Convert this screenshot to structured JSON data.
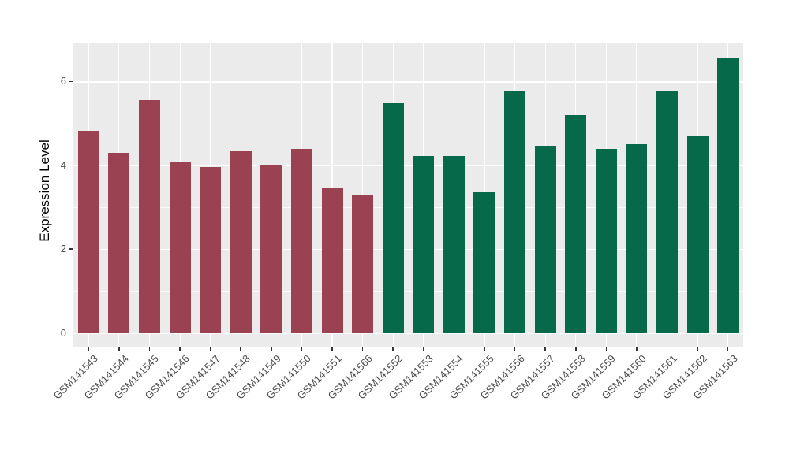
{
  "figure": {
    "background_color": "#FFFFFF",
    "panel_background_color": "#EBEBEB",
    "gridline_color": "#FFFFFF",
    "tick_color": "#333333",
    "axis_text_color": "#4D4D4D",
    "axis_title_color": "#000000"
  },
  "chart_data": {
    "type": "bar",
    "title": "",
    "xlabel": "",
    "ylabel": "Expression Level",
    "categories": [
      "GSM141543",
      "GSM141544",
      "GSM141545",
      "GSM141546",
      "GSM141547",
      "GSM141548",
      "GSM141549",
      "GSM141550",
      "GSM141551",
      "GSM141566",
      "GSM141552",
      "GSM141553",
      "GSM141554",
      "GSM141555",
      "GSM141556",
      "GSM141557",
      "GSM141558",
      "GSM141559",
      "GSM141560",
      "GSM141561",
      "GSM141562",
      "GSM141563"
    ],
    "values": [
      4.82,
      4.3,
      5.55,
      4.09,
      3.96,
      4.34,
      4.01,
      4.38,
      3.47,
      3.28,
      5.47,
      4.22,
      4.22,
      3.36,
      5.77,
      4.47,
      5.2,
      4.38,
      4.5,
      5.76,
      4.7,
      6.55
    ],
    "bar_colors": [
      "#9A4251",
      "#9A4251",
      "#9A4251",
      "#9A4251",
      "#9A4251",
      "#9A4251",
      "#9A4251",
      "#9A4251",
      "#9A4251",
      "#9A4251",
      "#05694A",
      "#05694A",
      "#05694A",
      "#05694A",
      "#05694A",
      "#05694A",
      "#05694A",
      "#05694A",
      "#05694A",
      "#05694A",
      "#05694A",
      "#05694A"
    ],
    "groups": [
      {
        "name": "maroon-group",
        "color": "#9A4251",
        "bar_count": 10
      },
      {
        "name": "green-group",
        "color": "#05694A",
        "bar_count": 12
      }
    ],
    "yticks": [
      0,
      2,
      4,
      6
    ],
    "minor_yticks": [
      1,
      3,
      5
    ],
    "ylim": [
      -0.35,
      6.88
    ],
    "x_tick_label_angle_deg": 45,
    "grid": true,
    "legend_position": "none"
  }
}
